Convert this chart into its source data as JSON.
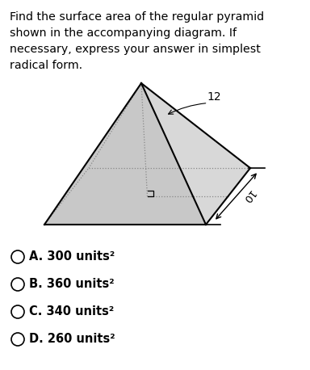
{
  "title_text": "Find the surface area of the regular pyramid\nshown in the accompanying diagram. If\nnecessary, express your answer in simplest\nradical form.",
  "choices": [
    "A. 300 units²",
    "B. 360 units²",
    "C. 340 units²",
    "D. 260 units²"
  ],
  "background_color": "#ffffff",
  "text_color": "#000000",
  "pyramid_fill": "#c8c8c8",
  "label_12": "12",
  "label_10": "10"
}
